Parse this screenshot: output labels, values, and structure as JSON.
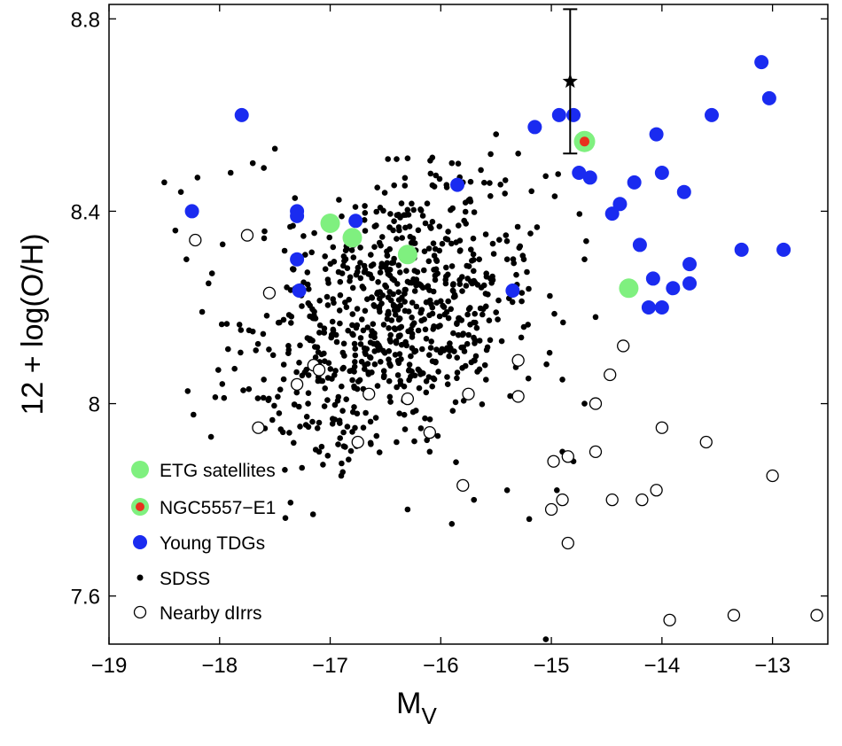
{
  "chart_data": {
    "type": "scatter",
    "xlabel": "M",
    "xlabel_sub": "V",
    "ylabel": "12 + log(O/H)",
    "xlim": [
      -19,
      -12.5
    ],
    "ylim": [
      7.5,
      8.83
    ],
    "xticks": [
      -19,
      -18,
      -17,
      -16,
      -15,
      -14,
      -13
    ],
    "xtick_labels": [
      "−19",
      "−18",
      "−17",
      "−16",
      "−15",
      "−14",
      "−13"
    ],
    "yticks": [
      7.6,
      8.0,
      8.4,
      8.8
    ],
    "ytick_labels": [
      "7.6",
      "8",
      "8.4",
      "8.8"
    ],
    "legend_position": "bottom-left",
    "colors": {
      "etg": "#7ff07f",
      "young_tdg": "#1a2bf0",
      "ngc_core": "#e8301e",
      "sdss": "#000000",
      "dirr": "#000000"
    },
    "series": [
      {
        "name": "ETG satellites",
        "points": [
          [
            -17.0,
            8.375
          ],
          [
            -16.8,
            8.345
          ],
          [
            -16.3,
            8.31
          ],
          [
            -14.3,
            8.24
          ]
        ]
      },
      {
        "name": "NGC5557−E1",
        "points": [
          [
            -14.7,
            8.545
          ]
        ],
        "errorbar": {
          "x": -14.83,
          "y": 8.67,
          "ylow": 8.52,
          "yhigh": 8.82
        }
      },
      {
        "name": "Young TDGs",
        "points": [
          [
            -17.8,
            8.6
          ],
          [
            -18.25,
            8.4
          ],
          [
            -17.3,
            8.4
          ],
          [
            -17.3,
            8.39
          ],
          [
            -16.77,
            8.38
          ],
          [
            -17.3,
            8.3
          ],
          [
            -17.28,
            8.235
          ],
          [
            -15.35,
            8.235
          ],
          [
            -15.85,
            8.455
          ],
          [
            -15.15,
            8.575
          ],
          [
            -14.93,
            8.6
          ],
          [
            -14.8,
            8.6
          ],
          [
            -14.75,
            8.48
          ],
          [
            -14.65,
            8.47
          ],
          [
            -14.38,
            8.415
          ],
          [
            -14.45,
            8.395
          ],
          [
            -14.25,
            8.46
          ],
          [
            -14.05,
            8.56
          ],
          [
            -14.0,
            8.48
          ],
          [
            -13.8,
            8.44
          ],
          [
            -14.2,
            8.33
          ],
          [
            -14.08,
            8.26
          ],
          [
            -14.12,
            8.2
          ],
          [
            -14.0,
            8.2
          ],
          [
            -13.9,
            8.24
          ],
          [
            -13.75,
            8.29
          ],
          [
            -13.75,
            8.25
          ],
          [
            -13.55,
            8.6
          ],
          [
            -13.28,
            8.32
          ],
          [
            -13.1,
            8.71
          ],
          [
            -13.03,
            8.635
          ],
          [
            -12.9,
            8.32
          ]
        ]
      },
      {
        "name": "SDSS",
        "n_points": 800,
        "center": [
          -16.4,
          8.2
        ],
        "spread": [
          0.65,
          0.14
        ],
        "points": [
          [
            -18.5,
            8.46
          ],
          [
            -18.35,
            8.44
          ],
          [
            -18.2,
            8.47
          ],
          [
            -17.9,
            8.48
          ],
          [
            -17.7,
            8.5
          ],
          [
            -17.5,
            8.53
          ],
          [
            -17.6,
            8.49
          ],
          [
            -16.3,
            8.51
          ],
          [
            -15.9,
            8.5
          ],
          [
            -15.5,
            8.56
          ],
          [
            -15.3,
            8.52
          ],
          [
            -15.8,
            8.46
          ],
          [
            -18.3,
            8.3
          ],
          [
            -18.4,
            8.36
          ],
          [
            -18.1,
            8.25
          ],
          [
            -17.7,
            8.15
          ],
          [
            -17.6,
            8.05
          ],
          [
            -17.2,
            8.0
          ],
          [
            -17.1,
            7.9
          ],
          [
            -16.9,
            7.85
          ],
          [
            -16.7,
            7.95
          ],
          [
            -16.4,
            7.92
          ],
          [
            -16.1,
            7.9
          ],
          [
            -15.9,
            7.75
          ],
          [
            -15.7,
            7.8
          ],
          [
            -15.4,
            7.82
          ],
          [
            -15.2,
            7.76
          ],
          [
            -14.95,
            7.82
          ],
          [
            -14.9,
            7.9
          ],
          [
            -14.8,
            7.88
          ],
          [
            -14.9,
            8.05
          ],
          [
            -14.7,
            8.0
          ],
          [
            -14.6,
            8.18
          ],
          [
            -14.7,
            8.3
          ],
          [
            -15.05,
            7.51
          ],
          [
            -16.3,
            7.78
          ],
          [
            -15.6,
            8.08
          ],
          [
            -15.4,
            8.3
          ]
        ]
      },
      {
        "name": "Nearby dIrrs",
        "points": [
          [
            -18.22,
            8.34
          ],
          [
            -17.75,
            8.35
          ],
          [
            -17.55,
            8.23
          ],
          [
            -17.3,
            8.04
          ],
          [
            -17.15,
            8.08
          ],
          [
            -17.1,
            8.07
          ],
          [
            -17.65,
            7.95
          ],
          [
            -16.75,
            7.92
          ],
          [
            -16.65,
            8.02
          ],
          [
            -16.3,
            8.01
          ],
          [
            -16.1,
            7.94
          ],
          [
            -15.8,
            7.83
          ],
          [
            -15.75,
            8.02
          ],
          [
            -15.3,
            8.09
          ],
          [
            -15.3,
            8.015
          ],
          [
            -14.98,
            7.88
          ],
          [
            -15.0,
            7.78
          ],
          [
            -14.9,
            7.8
          ],
          [
            -14.85,
            7.89
          ],
          [
            -14.85,
            7.71
          ],
          [
            -14.6,
            7.9
          ],
          [
            -14.6,
            8.0
          ],
          [
            -14.47,
            8.06
          ],
          [
            -14.35,
            8.12
          ],
          [
            -14.45,
            7.8
          ],
          [
            -14.18,
            7.8
          ],
          [
            -14.05,
            7.82
          ],
          [
            -14.0,
            7.95
          ],
          [
            -13.93,
            7.55
          ],
          [
            -13.6,
            7.92
          ],
          [
            -13.35,
            7.56
          ],
          [
            -13.0,
            7.85
          ],
          [
            -12.6,
            7.56
          ]
        ]
      }
    ]
  },
  "legend": [
    {
      "label": "ETG satellites"
    },
    {
      "label": "NGC5557−E1"
    },
    {
      "label": "Young TDGs"
    },
    {
      "label": "SDSS"
    },
    {
      "label": "Nearby dIrrs"
    }
  ]
}
